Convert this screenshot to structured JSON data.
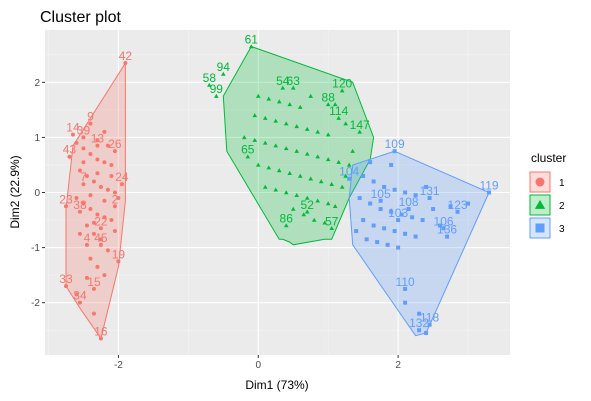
{
  "chart_data": {
    "type": "scatter",
    "title": "Cluster plot",
    "xlabel": "Dim1 (73%)",
    "ylabel": "Dim2 (22.9%)",
    "xlim": [
      -3.05,
      3.6
    ],
    "ylim": [
      -2.95,
      2.95
    ],
    "xticks": [
      -2,
      0,
      2
    ],
    "yticks": [
      -2,
      -1,
      0,
      1,
      2
    ],
    "grid": true,
    "legend_position": "right",
    "legend_title": "cluster",
    "series": [
      {
        "name": "1",
        "color": "#f8766d",
        "shape": "circle",
        "hull": [
          [
            -1.9,
            2.35
          ],
          [
            -1.9,
            -0.15
          ],
          [
            -2.0,
            -1.35
          ],
          [
            -2.25,
            -2.65
          ],
          [
            -2.55,
            -2.1
          ],
          [
            -2.75,
            -1.7
          ],
          [
            -2.75,
            -0.3
          ],
          [
            -2.65,
            0.85
          ],
          [
            -2.5,
            1.15
          ]
        ],
        "labeled_points": [
          {
            "label": "42",
            "x": -1.9,
            "y": 2.35
          },
          {
            "label": "14",
            "x": -2.65,
            "y": 1.05
          },
          {
            "label": "9",
            "x": -2.4,
            "y": 1.25
          },
          {
            "label": "39",
            "x": -2.5,
            "y": 1.0
          },
          {
            "label": "13",
            "x": -2.3,
            "y": 0.85
          },
          {
            "label": "26",
            "x": -2.05,
            "y": 0.75
          },
          {
            "label": "43",
            "x": -2.7,
            "y": 0.65
          },
          {
            "label": "24",
            "x": -1.95,
            "y": 0.15
          },
          {
            "label": "7",
            "x": -2.5,
            "y": 0.15
          },
          {
            "label": "23",
            "x": -2.75,
            "y": -0.25
          },
          {
            "label": "38",
            "x": -2.55,
            "y": -0.35
          },
          {
            "label": "2",
            "x": -2.05,
            "y": -0.25
          },
          {
            "label": "22",
            "x": -2.25,
            "y": -0.65
          },
          {
            "label": "4",
            "x": -2.45,
            "y": -0.95
          },
          {
            "label": "45",
            "x": -2.25,
            "y": -0.95
          },
          {
            "label": "19",
            "x": -2.0,
            "y": -1.25
          },
          {
            "label": "33",
            "x": -2.75,
            "y": -1.7
          },
          {
            "label": "15",
            "x": -2.35,
            "y": -1.75
          },
          {
            "label": "34",
            "x": -2.55,
            "y": -2.0
          },
          {
            "label": "16",
            "x": -2.25,
            "y": -2.65
          }
        ],
        "points": [
          [
            -2.6,
            0.9
          ],
          [
            -2.5,
            0.8
          ],
          [
            -2.4,
            0.7
          ],
          [
            -2.3,
            0.6
          ],
          [
            -2.2,
            0.55
          ],
          [
            -2.1,
            0.5
          ],
          [
            -2.55,
            0.4
          ],
          [
            -2.45,
            0.3
          ],
          [
            -2.35,
            0.2
          ],
          [
            -2.25,
            0.1
          ],
          [
            -2.15,
            0.05
          ],
          [
            -2.05,
            0.0
          ],
          [
            -2.6,
            -0.1
          ],
          [
            -2.5,
            -0.2
          ],
          [
            -2.4,
            -0.3
          ],
          [
            -2.3,
            -0.4
          ],
          [
            -2.2,
            -0.45
          ],
          [
            -2.1,
            -0.5
          ],
          [
            -2.45,
            -0.6
          ],
          [
            -2.35,
            -0.75
          ],
          [
            -2.25,
            -0.85
          ],
          [
            -2.15,
            -1.05
          ],
          [
            -2.4,
            -1.2
          ],
          [
            -2.3,
            -1.35
          ],
          [
            -2.2,
            -1.5
          ],
          [
            -2.45,
            -1.55
          ],
          [
            -2.6,
            -1.85
          ],
          [
            -2.35,
            -2.2
          ],
          [
            -2.3,
            0.35
          ],
          [
            -2.2,
            -0.15
          ],
          [
            -2.1,
            0.3
          ],
          [
            -2.4,
            -0.05
          ],
          [
            -2.5,
            0.55
          ],
          [
            -2.3,
            0.95
          ],
          [
            -2.15,
            0.85
          ],
          [
            -2.0,
            -0.1
          ],
          [
            -2.05,
            -0.7
          ],
          [
            -2.35,
            -0.55
          ],
          [
            -2.55,
            -0.75
          ],
          [
            -2.2,
            1.1
          ]
        ]
      },
      {
        "name": "2",
        "color": "#00ba38",
        "shape": "triangle",
        "hull": [
          [
            -0.1,
            2.65
          ],
          [
            1.35,
            2.0
          ],
          [
            1.65,
            1.0
          ],
          [
            1.6,
            0.6
          ],
          [
            1.3,
            -0.1
          ],
          [
            1.05,
            -0.85
          ],
          [
            0.95,
            -0.85
          ],
          [
            0.5,
            -0.95
          ],
          [
            0.45,
            -0.9
          ],
          [
            0.35,
            -0.85
          ],
          [
            0.3,
            -0.85
          ],
          [
            -0.45,
            0.75
          ],
          [
            -0.5,
            1.75
          ]
        ],
        "labeled_points": [
          {
            "label": "61",
            "x": -0.1,
            "y": 2.65
          },
          {
            "label": "94",
            "x": -0.5,
            "y": 2.15
          },
          {
            "label": "58",
            "x": -0.7,
            "y": 1.95
          },
          {
            "label": "99",
            "x": -0.6,
            "y": 1.75
          },
          {
            "label": "54",
            "x": 0.35,
            "y": 1.9
          },
          {
            "label": "63",
            "x": 0.5,
            "y": 1.9
          },
          {
            "label": "120",
            "x": 1.2,
            "y": 1.85
          },
          {
            "label": "88",
            "x": 1.0,
            "y": 1.6
          },
          {
            "label": "114",
            "x": 1.15,
            "y": 1.35
          },
          {
            "label": "147",
            "x": 1.45,
            "y": 1.1
          },
          {
            "label": "65",
            "x": -0.15,
            "y": 0.65
          },
          {
            "label": "86",
            "x": 0.4,
            "y": -0.6
          },
          {
            "label": "57",
            "x": 1.05,
            "y": -0.65
          },
          {
            "label": "52",
            "x": 0.7,
            "y": -0.35
          }
        ],
        "points": [
          [
            0.0,
            1.75
          ],
          [
            0.15,
            1.7
          ],
          [
            0.3,
            1.65
          ],
          [
            0.45,
            1.6
          ],
          [
            0.6,
            1.55
          ],
          [
            -0.05,
            1.4
          ],
          [
            0.1,
            1.35
          ],
          [
            0.25,
            1.3
          ],
          [
            0.4,
            1.25
          ],
          [
            0.55,
            1.2
          ],
          [
            0.7,
            1.15
          ],
          [
            0.85,
            1.1
          ],
          [
            1.0,
            1.05
          ],
          [
            -0.2,
            1.0
          ],
          [
            -0.05,
            0.95
          ],
          [
            0.1,
            0.9
          ],
          [
            0.25,
            0.85
          ],
          [
            0.4,
            0.8
          ],
          [
            0.55,
            0.75
          ],
          [
            0.7,
            0.7
          ],
          [
            0.85,
            0.65
          ],
          [
            1.0,
            0.6
          ],
          [
            1.15,
            0.55
          ],
          [
            1.3,
            0.5
          ],
          [
            0.0,
            0.5
          ],
          [
            0.15,
            0.45
          ],
          [
            0.3,
            0.4
          ],
          [
            0.45,
            0.35
          ],
          [
            0.6,
            0.3
          ],
          [
            0.75,
            0.25
          ],
          [
            0.9,
            0.2
          ],
          [
            1.05,
            0.15
          ],
          [
            1.2,
            0.1
          ],
          [
            0.1,
            0.1
          ],
          [
            0.25,
            0.05
          ],
          [
            0.4,
            0.0
          ],
          [
            0.55,
            -0.05
          ],
          [
            0.7,
            -0.1
          ],
          [
            0.85,
            -0.15
          ],
          [
            1.0,
            -0.2
          ],
          [
            0.5,
            -0.3
          ],
          [
            0.65,
            -0.4
          ],
          [
            0.8,
            -0.5
          ],
          [
            0.95,
            -0.55
          ],
          [
            1.1,
            -0.25
          ],
          [
            1.25,
            0.3
          ],
          [
            1.35,
            0.75
          ],
          [
            1.25,
            1.25
          ],
          [
            1.1,
            1.6
          ],
          [
            0.75,
            1.75
          ]
        ]
      },
      {
        "name": "3",
        "color": "#619cff",
        "shape": "square",
        "hull": [
          [
            1.95,
            0.75
          ],
          [
            3.3,
            0.0
          ],
          [
            2.4,
            -2.55
          ],
          [
            2.25,
            -2.6
          ],
          [
            1.35,
            -0.95
          ],
          [
            1.3,
            -0.1
          ],
          [
            1.35,
            0.5
          ]
        ],
        "labeled_points": [
          {
            "label": "109",
            "x": 1.95,
            "y": 0.75
          },
          {
            "label": "119",
            "x": 3.3,
            "y": 0.0
          },
          {
            "label": "131",
            "x": 2.45,
            "y": -0.1
          },
          {
            "label": "123",
            "x": 2.85,
            "y": -0.35
          },
          {
            "label": "106",
            "x": 2.65,
            "y": -0.65
          },
          {
            "label": "136",
            "x": 2.7,
            "y": -0.8
          },
          {
            "label": "105",
            "x": 1.75,
            "y": -0.15
          },
          {
            "label": "108",
            "x": 2.15,
            "y": -0.3
          },
          {
            "label": "103",
            "x": 2.0,
            "y": -0.5
          },
          {
            "label": "104",
            "x": 1.3,
            "y": 0.25
          },
          {
            "label": "110",
            "x": 2.1,
            "y": -1.75
          },
          {
            "label": "132",
            "x": 2.3,
            "y": -2.5
          },
          {
            "label": "118",
            "x": 2.45,
            "y": -2.4
          }
        ],
        "points": [
          [
            1.5,
            0.3
          ],
          [
            1.65,
            0.2
          ],
          [
            1.8,
            0.1
          ],
          [
            1.95,
            0.05
          ],
          [
            2.1,
            0.0
          ],
          [
            2.25,
            -0.05
          ],
          [
            1.45,
            -0.1
          ],
          [
            1.6,
            -0.2
          ],
          [
            1.75,
            -0.3
          ],
          [
            1.9,
            -0.35
          ],
          [
            2.05,
            -0.4
          ],
          [
            2.2,
            -0.45
          ],
          [
            2.35,
            -0.5
          ],
          [
            2.5,
            -0.3
          ],
          [
            1.5,
            -0.5
          ],
          [
            1.65,
            -0.6
          ],
          [
            1.8,
            -0.65
          ],
          [
            1.95,
            -0.7
          ],
          [
            2.1,
            -0.75
          ],
          [
            2.25,
            -0.8
          ],
          [
            1.55,
            -0.85
          ],
          [
            1.7,
            -0.9
          ],
          [
            1.85,
            -0.95
          ],
          [
            2.0,
            -1.0
          ],
          [
            2.6,
            -0.6
          ],
          [
            2.75,
            -0.25
          ],
          [
            3.0,
            -0.2
          ],
          [
            2.1,
            -2.0
          ],
          [
            2.3,
            -2.2
          ],
          [
            2.4,
            -2.55
          ],
          [
            1.9,
            0.5
          ],
          [
            2.4,
            0.1
          ],
          [
            1.6,
            0.55
          ],
          [
            1.4,
            -0.7
          ]
        ]
      }
    ]
  }
}
